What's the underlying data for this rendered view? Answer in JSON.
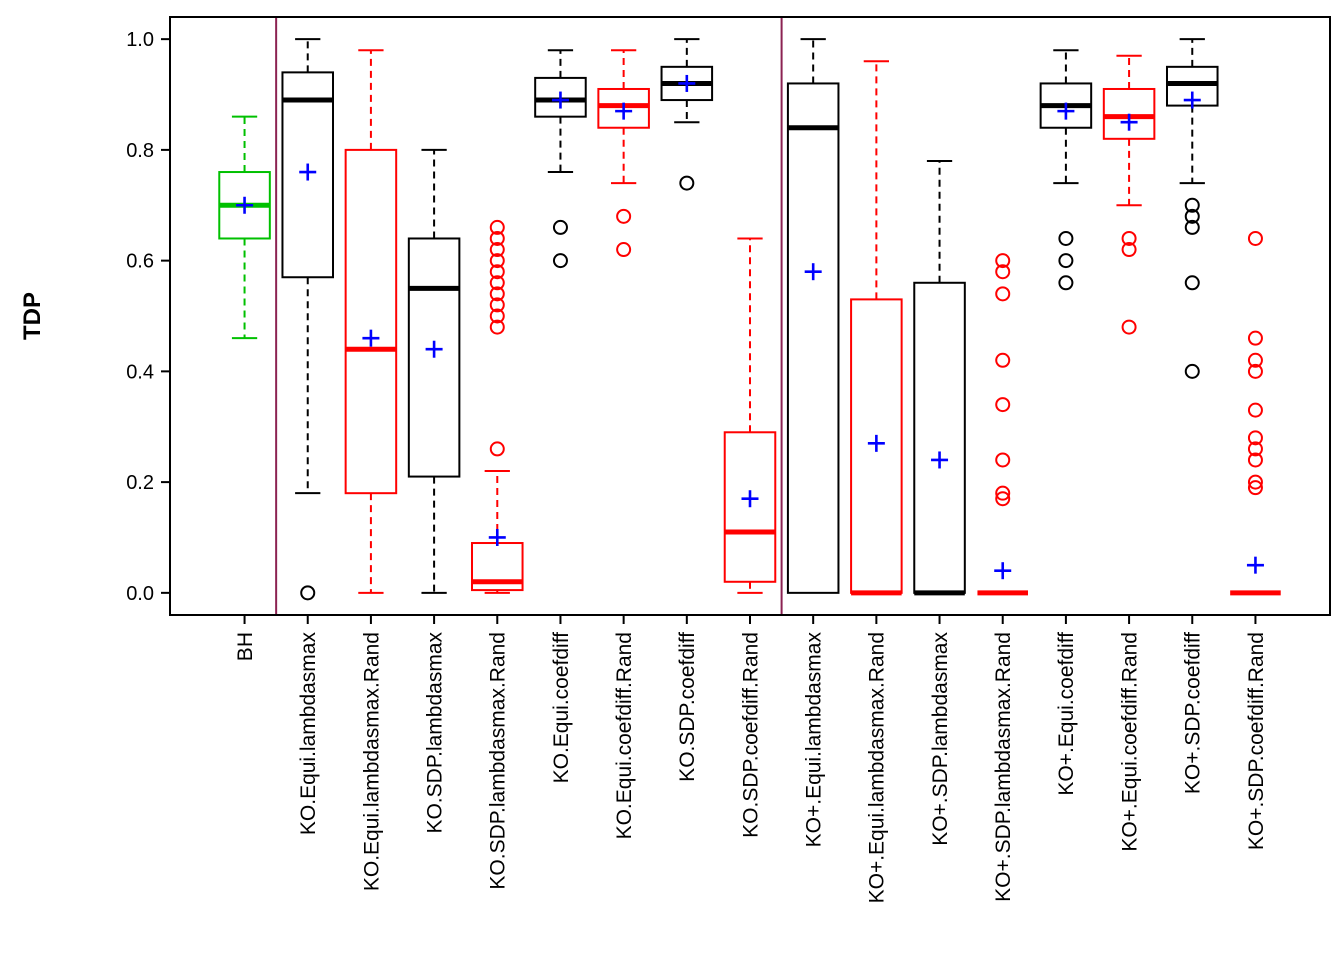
{
  "chart_data": {
    "type": "boxplot",
    "title": "",
    "xlabel": "",
    "ylabel": "TDP",
    "ylim": [
      0.0,
      1.0
    ],
    "yticks": [
      0.0,
      0.2,
      0.4,
      0.6,
      0.8,
      1.0
    ],
    "grid": false,
    "legend": "none",
    "mean_marker": "blue-plus",
    "mean_marker_color": "#0000FF",
    "separator_positions": [
      1.5,
      9.5
    ],
    "separator_color": "#8B2252",
    "frame_color": "#000000",
    "series": [
      {
        "label": "BH",
        "color": "#00C000",
        "low": 0.46,
        "q1": 0.64,
        "median": 0.7,
        "q3": 0.76,
        "high": 0.86,
        "mean": 0.7,
        "outliers": []
      },
      {
        "label": "KO.Equi.lambdasmax",
        "color": "#000000",
        "low": 0.18,
        "q1": 0.57,
        "median": 0.89,
        "q3": 0.94,
        "high": 1.0,
        "mean": 0.76,
        "outliers": [
          0.0
        ]
      },
      {
        "label": "KO.Equi.lambdasmax.Rand",
        "color": "#FF0000",
        "low": 0.0,
        "q1": 0.18,
        "median": 0.44,
        "q3": 0.8,
        "high": 0.98,
        "mean": 0.46,
        "outliers": []
      },
      {
        "label": "KO.SDP.lambdasmax",
        "color": "#000000",
        "low": 0.0,
        "q1": 0.21,
        "median": 0.55,
        "q3": 0.64,
        "high": 0.8,
        "mean": 0.44,
        "outliers": []
      },
      {
        "label": "KO.SDP.lambdasmax.Rand",
        "color": "#FF0000",
        "low": 0.0,
        "q1": 0.005,
        "median": 0.02,
        "q3": 0.09,
        "high": 0.22,
        "mean": 0.1,
        "outliers": [
          0.66,
          0.64,
          0.62,
          0.6,
          0.58,
          0.56,
          0.54,
          0.52,
          0.5,
          0.48,
          0.26
        ]
      },
      {
        "label": "KO.Equi.coefdiff",
        "color": "#000000",
        "low": 0.76,
        "q1": 0.86,
        "median": 0.89,
        "q3": 0.93,
        "high": 0.98,
        "mean": 0.89,
        "outliers": [
          0.66,
          0.6
        ]
      },
      {
        "label": "KO.Equi.coefdiff.Rand",
        "color": "#FF0000",
        "low": 0.74,
        "q1": 0.84,
        "median": 0.88,
        "q3": 0.91,
        "high": 0.98,
        "mean": 0.87,
        "outliers": [
          0.68,
          0.62
        ]
      },
      {
        "label": "KO.SDP.coefdiff",
        "color": "#000000",
        "low": 0.85,
        "q1": 0.89,
        "median": 0.92,
        "q3": 0.95,
        "high": 1.0,
        "mean": 0.92,
        "outliers": [
          0.74
        ]
      },
      {
        "label": "KO.SDP.coefdiff.Rand",
        "color": "#FF0000",
        "low": 0.0,
        "q1": 0.02,
        "median": 0.11,
        "q3": 0.29,
        "high": 0.64,
        "mean": 0.17,
        "outliers": []
      },
      {
        "label": "KO+.Equi.lambdasmax",
        "color": "#000000",
        "low": 0.0,
        "q1": 0.0,
        "median": 0.84,
        "q3": 0.92,
        "high": 1.0,
        "mean": 0.58,
        "outliers": []
      },
      {
        "label": "KO+.Equi.lambdasmax.Rand",
        "color": "#FF0000",
        "low": 0.0,
        "q1": 0.0,
        "median": 0.0,
        "q3": 0.53,
        "high": 0.96,
        "mean": 0.27,
        "outliers": []
      },
      {
        "label": "KO+.SDP.lambdasmax",
        "color": "#000000",
        "low": 0.0,
        "q1": 0.0,
        "median": 0.0,
        "q3": 0.56,
        "high": 0.78,
        "mean": 0.24,
        "outliers": []
      },
      {
        "label": "KO+.SDP.lambdasmax.Rand",
        "color": "#FF0000",
        "low": 0.0,
        "q1": 0.0,
        "median": 0.0,
        "q3": 0.0,
        "high": 0.0,
        "mean": 0.04,
        "outliers": [
          0.6,
          0.58,
          0.54,
          0.42,
          0.34,
          0.24,
          0.18,
          0.17
        ]
      },
      {
        "label": "KO+.Equi.coefdiff",
        "color": "#000000",
        "low": 0.74,
        "q1": 0.84,
        "median": 0.88,
        "q3": 0.92,
        "high": 0.98,
        "mean": 0.87,
        "outliers": [
          0.64,
          0.6,
          0.56
        ]
      },
      {
        "label": "KO+.Equi.coefdiff.Rand",
        "color": "#FF0000",
        "low": 0.7,
        "q1": 0.82,
        "median": 0.86,
        "q3": 0.91,
        "high": 0.97,
        "mean": 0.85,
        "outliers": [
          0.64,
          0.62,
          0.48
        ]
      },
      {
        "label": "KO+.SDP.coefdiff",
        "color": "#000000",
        "low": 0.74,
        "q1": 0.88,
        "median": 0.92,
        "q3": 0.95,
        "high": 1.0,
        "mean": 0.89,
        "outliers": [
          0.7,
          0.68,
          0.66,
          0.56,
          0.4
        ]
      },
      {
        "label": "KO+.SDP.coefdiff.Rand",
        "color": "#FF0000",
        "low": 0.0,
        "q1": 0.0,
        "median": 0.0,
        "q3": 0.0,
        "high": 0.0,
        "mean": 0.05,
        "outliers": [
          0.64,
          0.46,
          0.42,
          0.4,
          0.33,
          0.28,
          0.26,
          0.24,
          0.2,
          0.19
        ]
      }
    ]
  }
}
